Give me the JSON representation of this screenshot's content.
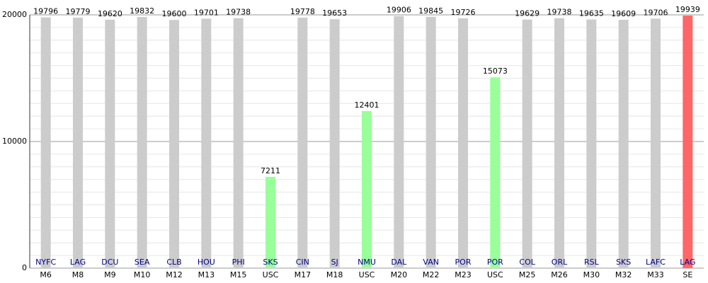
{
  "chart_data": {
    "type": "bar",
    "categories": [
      "M6",
      "M8",
      "M9",
      "M10",
      "M12",
      "M13",
      "M15",
      "USC",
      "M17",
      "M18",
      "USC",
      "M20",
      "M22",
      "M23",
      "USC",
      "M25",
      "M26",
      "M30",
      "M32",
      "M33",
      "SE"
    ],
    "opponents": [
      "NYFC",
      "LAG",
      "DCU",
      "SEA",
      "CLB",
      "HOU",
      "PHI",
      "SKS",
      "CIN",
      "SJ",
      "NMU",
      "DAL",
      "VAN",
      "POR",
      "POR",
      "COL",
      "ORL",
      "RSL",
      "SKS",
      "LAFC",
      "LAG"
    ],
    "values": [
      19796,
      19779,
      19620,
      19832,
      19600,
      19701,
      19738,
      7211,
      19778,
      19653,
      12401,
      19906,
      19845,
      19726,
      15073,
      19629,
      19738,
      19635,
      19609,
      19706,
      19939
    ],
    "colors": [
      "#cccccc",
      "#cccccc",
      "#cccccc",
      "#cccccc",
      "#cccccc",
      "#cccccc",
      "#cccccc",
      "#99ff99",
      "#cccccc",
      "#cccccc",
      "#99ff99",
      "#cccccc",
      "#cccccc",
      "#cccccc",
      "#99ff99",
      "#cccccc",
      "#cccccc",
      "#cccccc",
      "#cccccc",
      "#cccccc",
      "#ff6666"
    ],
    "ylim": [
      0,
      20000
    ],
    "yticks": [
      0,
      10000,
      20000
    ],
    "minor_yticks": [
      1000,
      2000,
      3000,
      4000,
      5000,
      6000,
      7000,
      8000,
      9000,
      11000,
      12000,
      13000,
      14000,
      15000,
      16000,
      17000,
      18000,
      19000
    ],
    "grid": true
  }
}
